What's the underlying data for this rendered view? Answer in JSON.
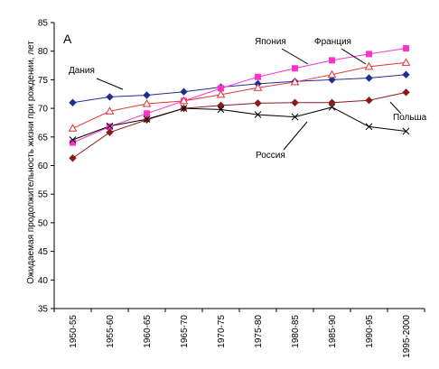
{
  "chart_data": {
    "type": "line",
    "panel_label": "А",
    "ylabel": "Ожидаемая продолжительность жизни при рождении, лет",
    "xlabel": "",
    "ylim": [
      35,
      85
    ],
    "y_ticks": [
      35,
      40,
      45,
      50,
      55,
      60,
      65,
      70,
      75,
      80,
      85
    ],
    "grid": false,
    "categories": [
      "1950-55",
      "1955-60",
      "1960-65",
      "1965-70",
      "1970-75",
      "1975-80",
      "1980-85",
      "1985-90",
      "1990-95",
      "1995-2000"
    ],
    "series": [
      {
        "name": "Дания",
        "color": "#1f2f8f",
        "marker": "diamond-filled",
        "values": [
          71.0,
          72.0,
          72.3,
          72.9,
          73.7,
          74.3,
          74.7,
          75.0,
          75.3,
          75.9
        ]
      },
      {
        "name": "Япония",
        "color": "#ff33cc",
        "marker": "square-filled",
        "values": [
          64.0,
          66.8,
          69.1,
          71.3,
          73.5,
          75.5,
          77.0,
          78.4,
          79.5,
          80.5
        ]
      },
      {
        "name": "Франция",
        "color": "#e63333",
        "marker": "triangle-open",
        "values": [
          66.5,
          69.5,
          70.8,
          71.3,
          72.4,
          73.6,
          74.6,
          75.9,
          77.3,
          78.0
        ]
      },
      {
        "name": "Польша",
        "color": "#8b1a1a",
        "marker": "diamond-filled",
        "values": [
          61.3,
          65.8,
          68.0,
          70.0,
          70.5,
          70.9,
          71.0,
          71.0,
          71.4,
          72.8
        ]
      },
      {
        "name": "Россия",
        "color": "#000000",
        "marker": "x",
        "values": [
          64.5,
          66.9,
          68.1,
          70.0,
          69.8,
          68.9,
          68.5,
          70.2,
          66.8,
          66.0
        ]
      }
    ],
    "annotations": [
      {
        "text": "Япония",
        "series": "Япония",
        "anchor_index": 6
      },
      {
        "text": "Франция",
        "series": "Франция",
        "anchor_index": 8
      },
      {
        "text": "Дания",
        "series": "Дания",
        "anchor_index": 1
      },
      {
        "text": "Польша",
        "series": "Польша",
        "anchor_index": 9
      },
      {
        "text": "Россия",
        "series": "Россия",
        "anchor_index": 6
      }
    ]
  }
}
